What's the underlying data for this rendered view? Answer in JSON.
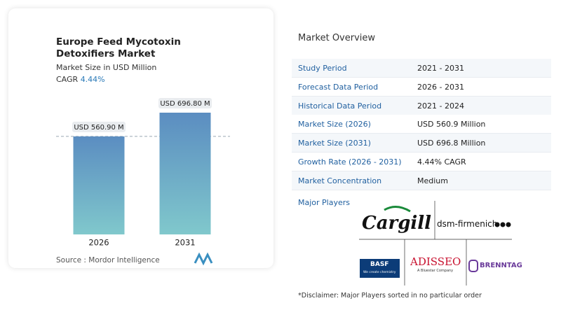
{
  "chart_data": {
    "type": "bar",
    "title": "Europe Feed Mycotoxin Detoxifiers Market",
    "subtitle": "Market Size in USD Million",
    "cagr": {
      "label": "CAGR",
      "value": "4.44%"
    },
    "categories": [
      "2026",
      "2031"
    ],
    "values": [
      560.9,
      696.8
    ],
    "value_labels": [
      "USD 560.90 M",
      "USD 696.80 M"
    ],
    "gradient": [
      "#5b8dc1",
      "#80c8cc"
    ],
    "source": "Source :  Mordor Intelligence"
  },
  "overview": {
    "title": "Market Overview",
    "rows": [
      [
        "Study Period",
        "2021 - 2031"
      ],
      [
        "Forecast Data Period",
        "2026 - 2031"
      ],
      [
        "Historical Data Period",
        "2021 - 2024"
      ],
      [
        "Market Size (2026)",
        "USD 560.9 Million"
      ],
      [
        "Market Size (2031)",
        "USD 696.8 Million"
      ],
      [
        "Growth Rate (2026 - 2031)",
        "4.44% CAGR"
      ],
      [
        "Market Concentration",
        "Medium"
      ]
    ]
  },
  "players": {
    "title": "Major Players",
    "logos": [
      "Cargill",
      "dsm-firmenich",
      "BASF",
      "We create chemistry",
      "ADISSEO",
      "A Bluestar Company",
      "BRENNTAG"
    ]
  },
  "disclaimer": "*Disclaimer: Major Players sorted in no particular order"
}
